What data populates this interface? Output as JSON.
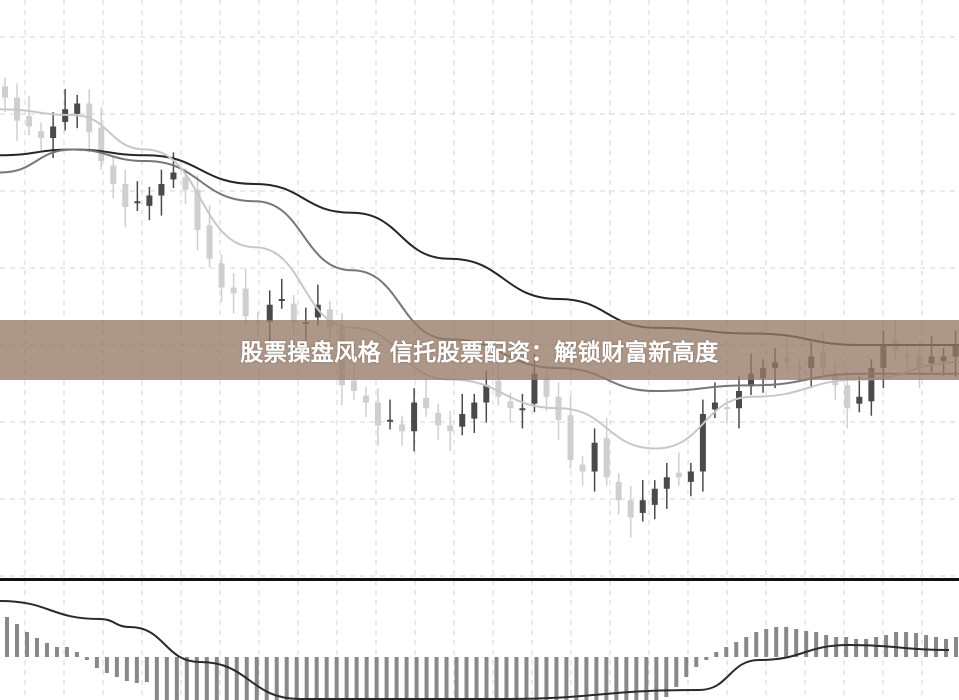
{
  "banner": {
    "title": "股票操盘风格 信托股票配资：解锁财富新高度"
  },
  "colors": {
    "bull": "#4a4a4a",
    "bear": "#cfcfcf",
    "ma_fast": "#c8c8c8",
    "ma_mid": "#777777",
    "ma_slow": "#2e2222",
    "macd_bar": "#888888",
    "signal": "#2a2a2a",
    "banner_bg": "#967a66"
  },
  "chart_data": {
    "type": "candlestick",
    "ylim": [
      0,
      100
    ],
    "grid": true,
    "closes": [
      83,
      79,
      78,
      76,
      78,
      81,
      82,
      77,
      72,
      68,
      64,
      65,
      66,
      68,
      70,
      67,
      60,
      55,
      50,
      49,
      45,
      44,
      47,
      48,
      44,
      44,
      47,
      43,
      33,
      32,
      30,
      26,
      27,
      25,
      30,
      29,
      26,
      25,
      28,
      30,
      33,
      31,
      29,
      29,
      35,
      31,
      27,
      20,
      18,
      23,
      17,
      13,
      10,
      13,
      15,
      17,
      17,
      18,
      28,
      30,
      29,
      32,
      35,
      36,
      37,
      37,
      36,
      38,
      36,
      33,
      29,
      31,
      36,
      40,
      39,
      38,
      36,
      38,
      38,
      40
    ],
    "moving_averages": {
      "sample_index": [
        0,
        6,
        12,
        21,
        29,
        37,
        46,
        54,
        62,
        71,
        79
      ],
      "fast": [
        81,
        80,
        74,
        57,
        43,
        34,
        29,
        22,
        31,
        34,
        37
      ],
      "mid": [
        70,
        74,
        72,
        65,
        53,
        41,
        36,
        32,
        33,
        35,
        35
      ],
      "slow": [
        73,
        74,
        73,
        68,
        63,
        55,
        48,
        43,
        42,
        40,
        40
      ]
    },
    "macd": {
      "histogram": [
        40,
        33,
        25,
        19,
        14,
        10,
        10,
        5,
        -3,
        -11,
        -16,
        -20,
        -24,
        -26,
        -25,
        -50,
        -50,
        -50,
        -50,
        -50,
        -50,
        -50,
        -50,
        -50,
        -50,
        -50,
        -50,
        -50,
        -50,
        -50,
        -50,
        -50,
        -50,
        -50,
        -50,
        -50,
        -50,
        -50,
        -50,
        -50,
        -50,
        -50,
        -50,
        -50,
        -50,
        -50,
        -50,
        -50,
        -50,
        -50,
        -50,
        -50,
        -50,
        -50,
        -50,
        -50,
        -50,
        -50,
        -50,
        -50,
        -50,
        -50,
        -50,
        -50,
        -50,
        -50,
        -40,
        -30,
        -20,
        -10,
        -3,
        5,
        10,
        15,
        20,
        25,
        28,
        30,
        30,
        28,
        26,
        25,
        22,
        20,
        20,
        18,
        18,
        20,
        22,
        25,
        25,
        24,
        22,
        20,
        18,
        20
      ],
      "signal_index": [
        0,
        10,
        13,
        20,
        30,
        50,
        70,
        76,
        85,
        95
      ],
      "signal": [
        56,
        38,
        30,
        -5,
        -50,
        -80,
        -33,
        -3,
        12,
        7
      ]
    }
  }
}
